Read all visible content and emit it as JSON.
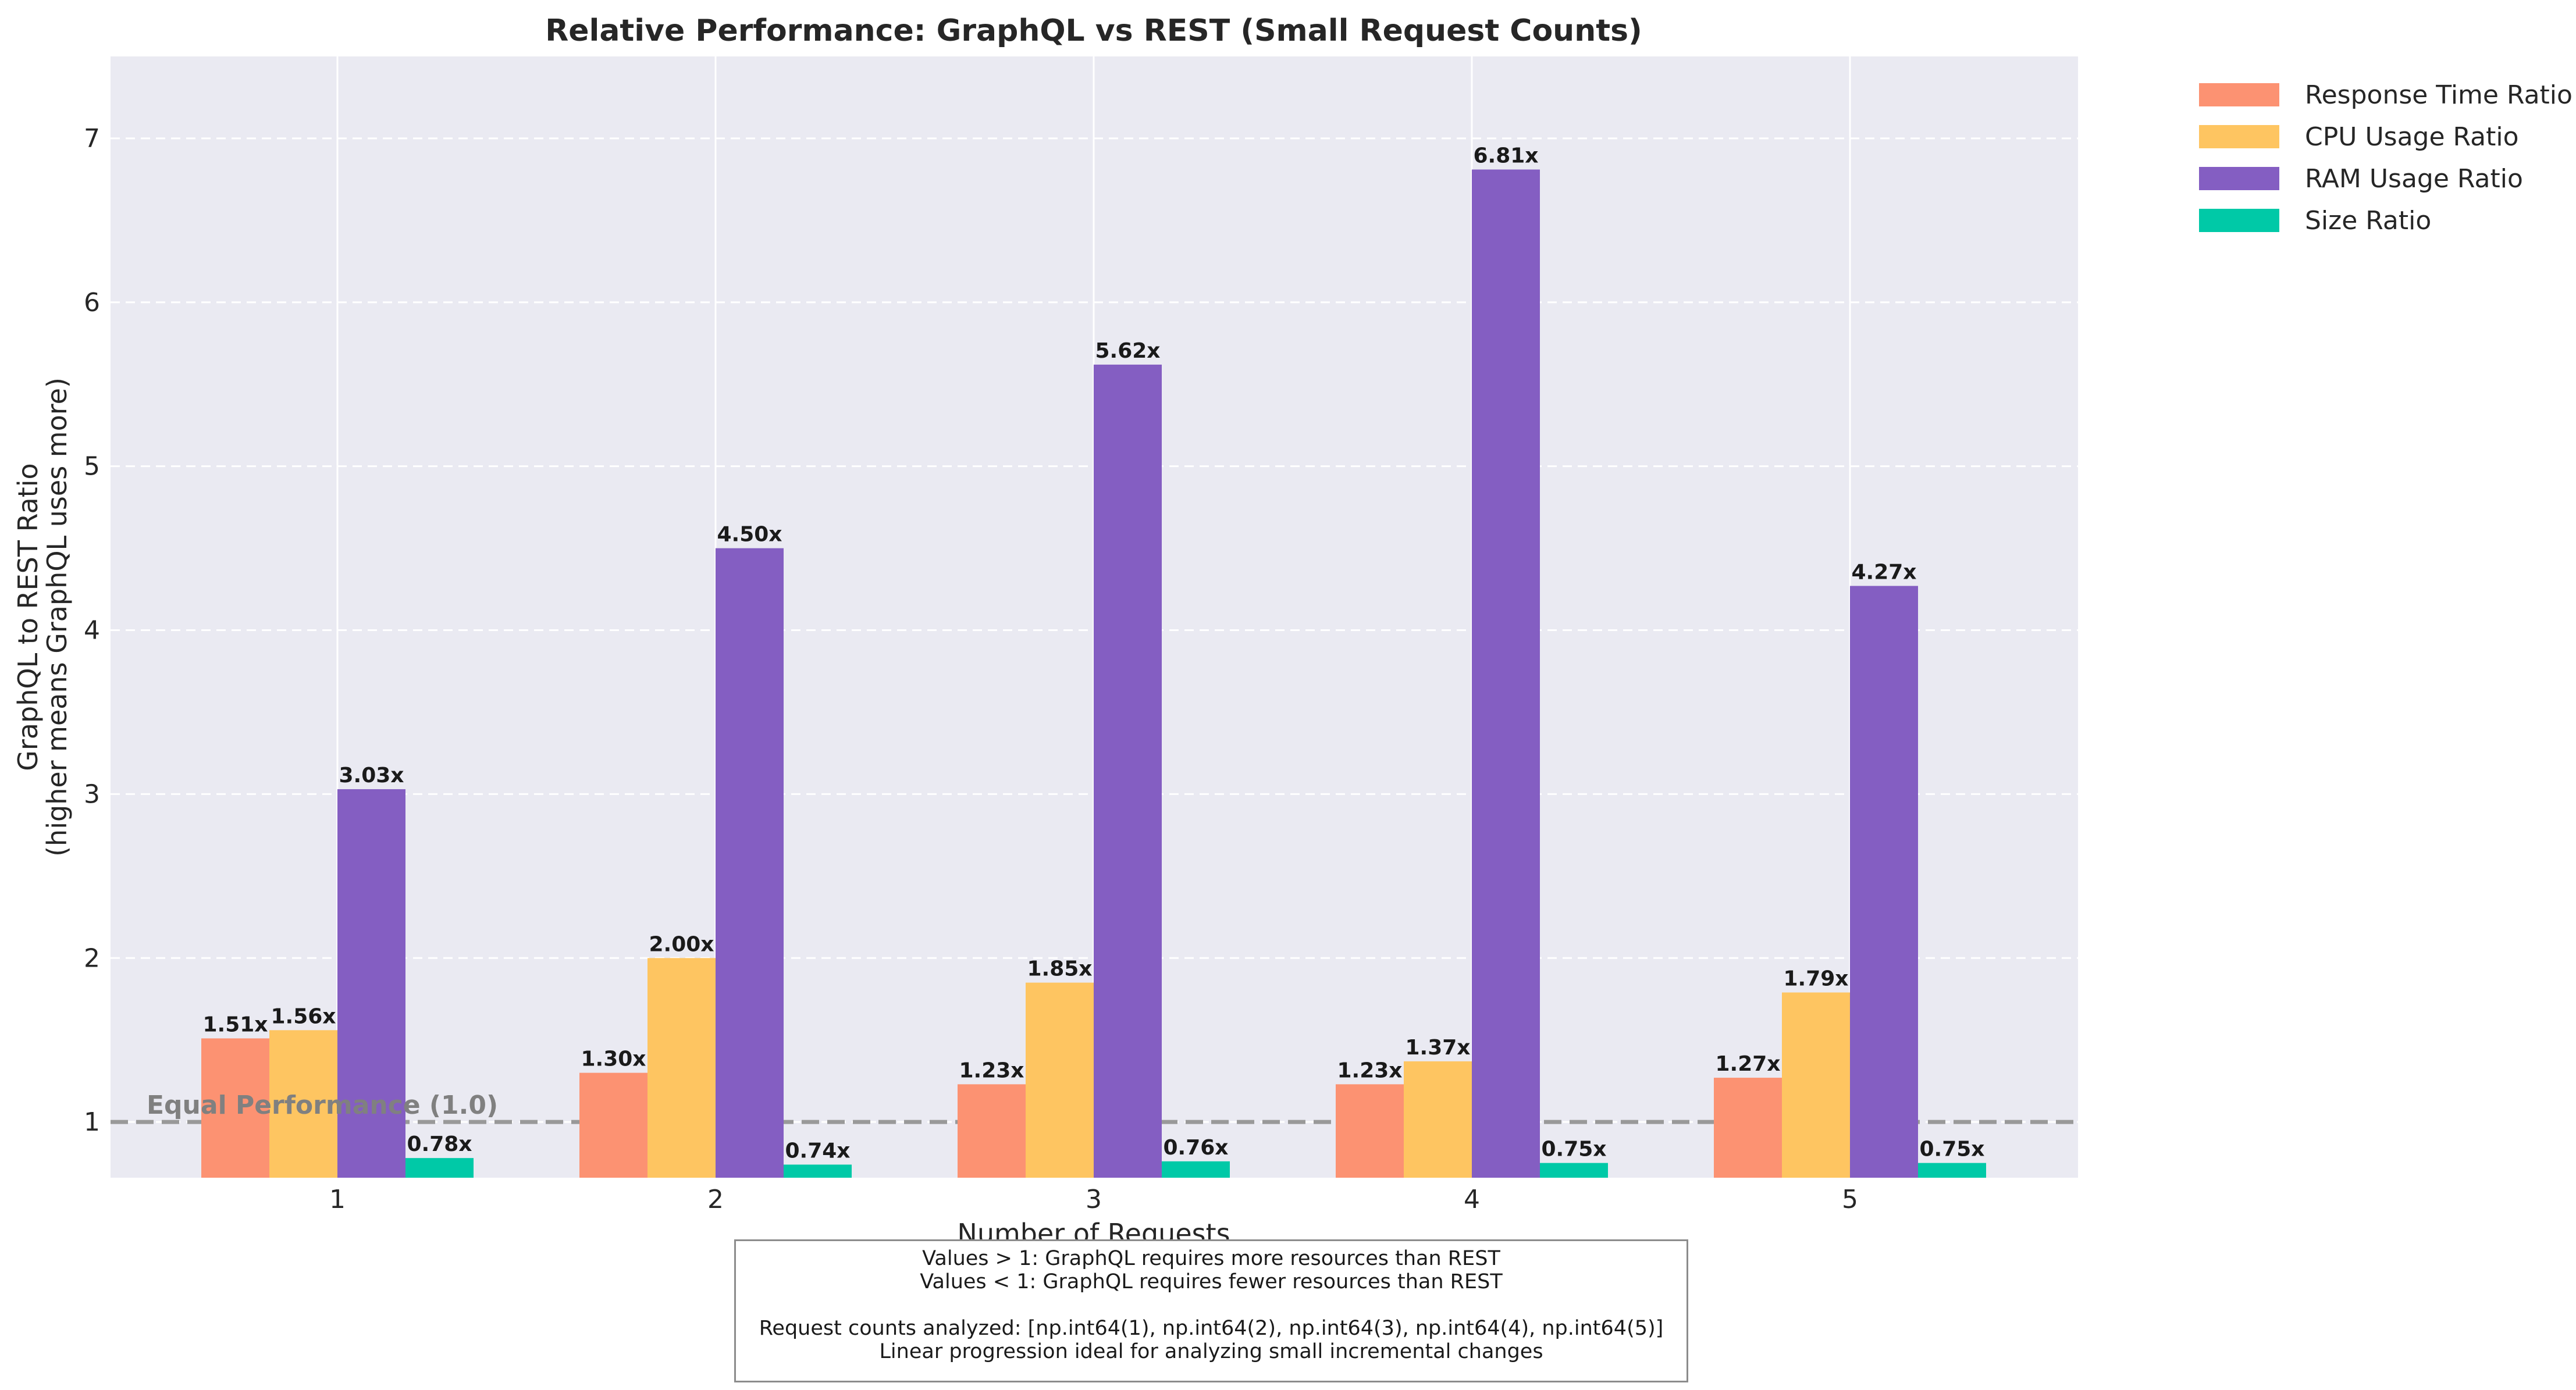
{
  "chart_data": {
    "type": "bar",
    "title": "Relative Performance: GraphQL vs REST (Small Request Counts)",
    "xlabel": "Number of Requests",
    "ylabel_line1": "GraphQL to REST Ratio",
    "ylabel_line2": "(higher means GraphQL uses more)",
    "categories": [
      "1",
      "2",
      "3",
      "4",
      "5"
    ],
    "ylim": [
      0.66,
      7.5
    ],
    "yticks": [
      1,
      2,
      3,
      4,
      5,
      6,
      7
    ],
    "yticks_labels": [
      "1",
      "2",
      "3",
      "4",
      "5",
      "6",
      "7"
    ],
    "grid": true,
    "legend_position": "outside-top-right",
    "series": [
      {
        "name": "Response Time Ratio",
        "color": "#FC9272",
        "values": [
          1.51,
          1.3,
          1.23,
          1.23,
          1.27
        ],
        "labels": [
          "1.51x",
          "1.30x",
          "1.23x",
          "1.23x",
          "1.27x"
        ]
      },
      {
        "name": "CPU Usage Ratio",
        "color": "#FEC561",
        "values": [
          1.56,
          2.0,
          1.85,
          1.37,
          1.79
        ],
        "labels": [
          "1.56x",
          "2.00x",
          "1.85x",
          "1.37x",
          "1.79x"
        ]
      },
      {
        "name": "RAM Usage Ratio",
        "color": "#845EC2",
        "values": [
          3.03,
          4.5,
          5.62,
          6.81,
          4.27
        ],
        "labels": [
          "3.03x",
          "4.50x",
          "5.62x",
          "6.81x",
          "4.27x"
        ]
      },
      {
        "name": "Size Ratio",
        "color": "#00C9A7",
        "values": [
          0.78,
          0.74,
          0.76,
          0.75,
          0.75
        ],
        "labels": [
          "0.78x",
          "0.74x",
          "0.76x",
          "0.75x",
          "0.75x"
        ]
      }
    ],
    "reference_line": {
      "value": 1.0,
      "label": "Equal Performance (1.0)",
      "color": "#999999"
    },
    "plot_background": "#EAEAF2"
  },
  "note": {
    "line1": "Values > 1: GraphQL requires more resources than REST",
    "line2": "Values < 1: GraphQL requires fewer resources than REST",
    "line3": "Request counts analyzed: [np.int64(1), np.int64(2), np.int64(3), np.int64(4), np.int64(5)]",
    "line4": "Linear progression ideal for analyzing small incremental changes"
  }
}
